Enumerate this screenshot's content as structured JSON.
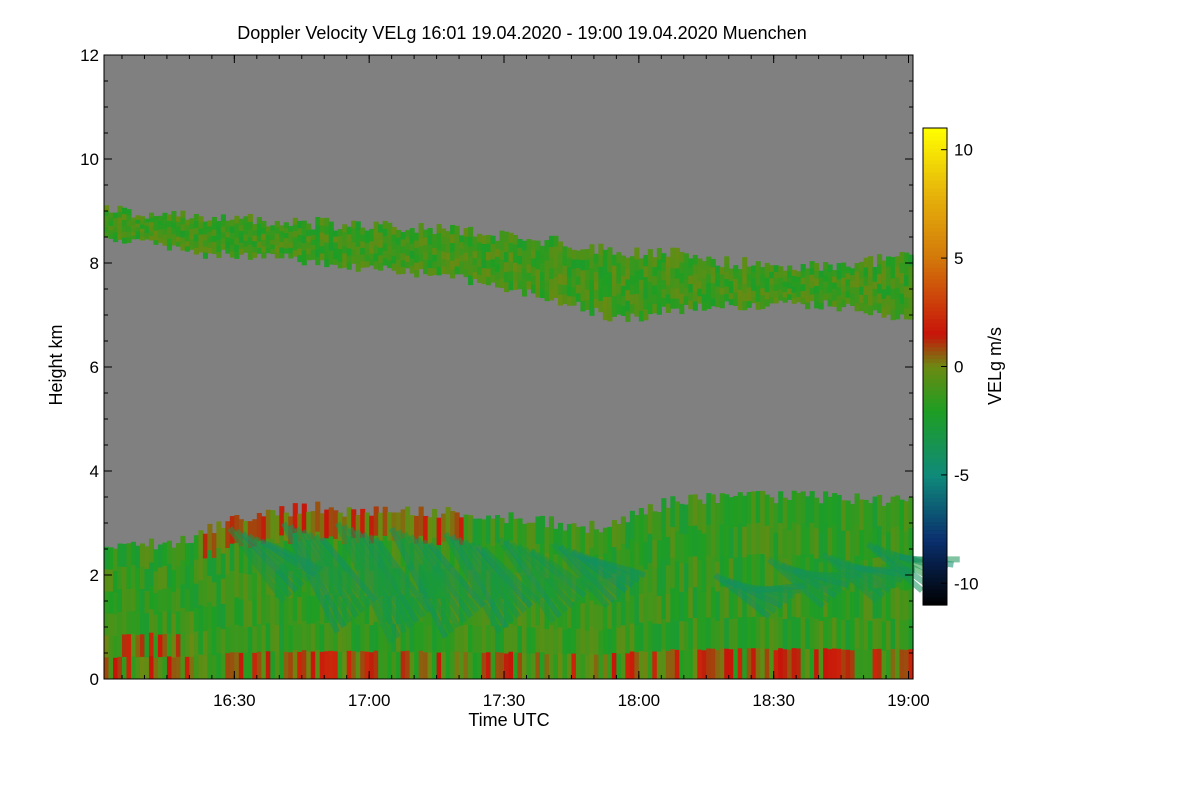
{
  "chart_data": {
    "type": "heatmap",
    "title": "Doppler Velocity VELg   16:01 19.04.2020 - 19:00 19.04.2020 Muenchen",
    "xlabel": "Time UTC",
    "ylabel": "Height km",
    "colorbar_label": "VELg m/s",
    "x_ticks": [
      {
        "label": "16:30",
        "minutes_after_1601": 29
      },
      {
        "label": "17:00",
        "minutes_after_1601": 59
      },
      {
        "label": "17:30",
        "minutes_after_1601": 89
      },
      {
        "label": "18:00",
        "minutes_after_1601": 119
      },
      {
        "label": "18:30",
        "minutes_after_1601": 149
      },
      {
        "label": "19:00",
        "minutes_after_1601": 179
      }
    ],
    "xlim_minutes_after_1601": [
      0,
      180
    ],
    "y_ticks": [
      0,
      2,
      4,
      6,
      8,
      10,
      12
    ],
    "ylim": [
      0,
      12
    ],
    "colorbar_ticks": [
      10,
      5,
      0,
      -5,
      -10
    ],
    "colorbar_range": [
      -11,
      11
    ],
    "colormap": [
      {
        "value": -11,
        "color": "#000000"
      },
      {
        "value": -8,
        "color": "#0a2f6e"
      },
      {
        "value": -5,
        "color": "#0f8a7a"
      },
      {
        "value": -2,
        "color": "#1f9e23"
      },
      {
        "value": 0,
        "color": "#6b8a12"
      },
      {
        "value": 1.5,
        "color": "#c8140a"
      },
      {
        "value": 5,
        "color": "#d2780a"
      },
      {
        "value": 8,
        "color": "#e6b40a"
      },
      {
        "value": 11,
        "color": "#ffff00"
      }
    ],
    "background_color": "#808080",
    "layers": [
      {
        "name": "upper cloud band",
        "time_min": [
          0,
          20,
          40,
          60,
          80,
          100,
          115,
          125,
          140,
          160,
          175,
          180
        ],
        "top_km": [
          9.0,
          8.9,
          8.8,
          8.7,
          8.6,
          8.4,
          8.2,
          8.2,
          8.0,
          7.9,
          8.1,
          8.2
        ],
        "base_km": [
          8.5,
          8.2,
          8.1,
          7.9,
          7.7,
          7.3,
          6.9,
          7.1,
          7.2,
          7.2,
          7.0,
          7.0
        ],
        "velocity": -1.2
      },
      {
        "name": "lower cloud layer",
        "time_min": [
          0,
          15,
          30,
          45,
          60,
          75,
          90,
          110,
          125,
          140,
          160,
          180
        ],
        "top_km": [
          2.6,
          2.6,
          3.1,
          3.3,
          3.2,
          3.2,
          3.1,
          2.9,
          3.4,
          3.5,
          3.5,
          3.4
        ],
        "base_km": [
          0,
          0,
          0,
          0,
          0,
          0,
          0,
          0,
          0,
          0,
          0,
          0
        ],
        "velocity": -1.5
      },
      {
        "name": "fall streaks",
        "time_min": [
          28,
          40,
          52,
          64,
          76,
          88,
          100,
          136,
          148,
          160,
          170
        ],
        "top_km": [
          2.9,
          3.0,
          3.0,
          2.9,
          2.8,
          2.7,
          2.6,
          2.0,
          2.3,
          2.4,
          2.6
        ],
        "base_km": [
          1.5,
          0.9,
          0.7,
          0.8,
          0.9,
          1.1,
          1.4,
          1.2,
          1.4,
          1.5,
          1.7
        ],
        "velocity": -3.8
      }
    ]
  }
}
